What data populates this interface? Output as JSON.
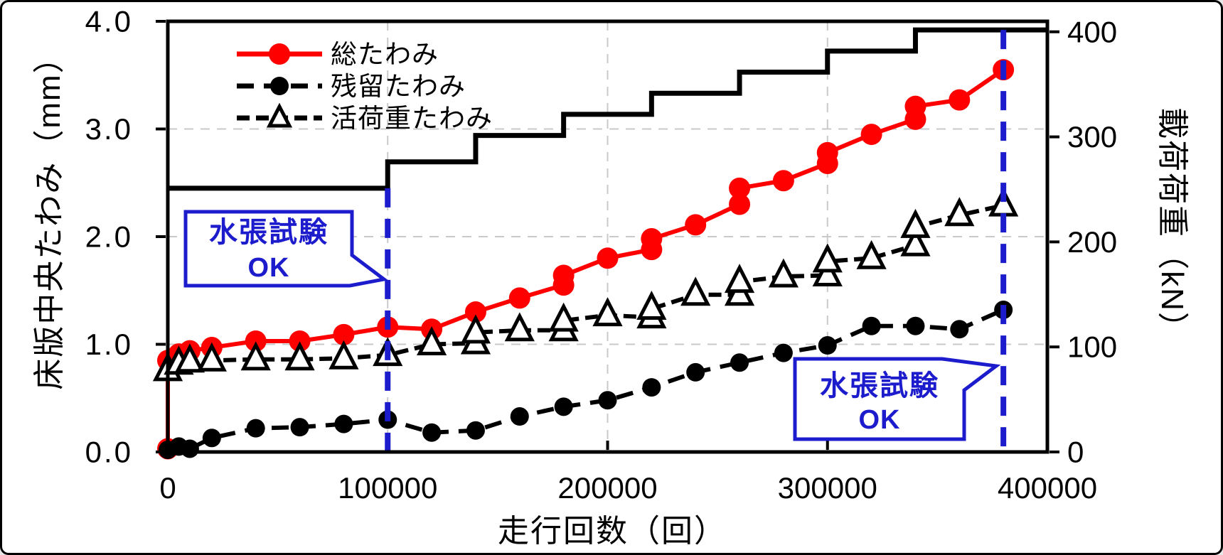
{
  "chart_data": {
    "type": "line",
    "title": "",
    "x_axis": {
      "label": "走行回数（回）",
      "min": 0,
      "max": 400000,
      "tick_values": [
        0,
        100000,
        200000,
        300000,
        400000
      ],
      "tick_labels": [
        "0",
        "100000",
        "200000",
        "300000",
        "400000"
      ],
      "gridline_values": [
        100000,
        200000,
        300000
      ],
      "grid": true
    },
    "y_axis_left": {
      "label": "床版中央たわみ（mm）",
      "min": 0,
      "max": 4.0,
      "tick_values": [
        0,
        1,
        2,
        3,
        4
      ],
      "tick_labels": [
        "0.0",
        "1.0",
        "2.0",
        "3.0",
        "4.0"
      ],
      "gridline_values": [
        1,
        2,
        3
      ],
      "grid": true
    },
    "y_axis_right": {
      "label": "載荷荷重（kN）",
      "tick_values": [
        0,
        100,
        200,
        300,
        400
      ],
      "tick_labels": [
        "0",
        "100",
        "200",
        "300",
        "400"
      ],
      "display_min": 0,
      "display_max": 410
    },
    "legend": {
      "position": "top-left-inside",
      "entries": [
        {
          "label": "総たわみ",
          "series": "total"
        },
        {
          "label": "残留たわみ",
          "series": "residual"
        },
        {
          "label": "活荷重たわみ",
          "series": "live_load"
        }
      ]
    },
    "series": [
      {
        "id": "total",
        "name": "総たわみ",
        "color": "#ff0000",
        "line": "solid",
        "marker": "filled-circle",
        "axis": "left",
        "points": [
          [
            0,
            0.03
          ],
          [
            0,
            0.85
          ],
          [
            5000,
            0.91
          ],
          [
            10000,
            0.94
          ],
          [
            20000,
            0.97
          ],
          [
            40000,
            1.03
          ],
          [
            60000,
            1.03
          ],
          [
            80000,
            1.09
          ],
          [
            100000,
            1.16
          ],
          [
            120000,
            1.14
          ],
          [
            140000,
            1.3
          ],
          [
            160000,
            1.43
          ],
          [
            180000,
            1.55
          ],
          [
            180000,
            1.64
          ],
          [
            200000,
            1.8
          ],
          [
            220000,
            1.88
          ],
          [
            220000,
            1.98
          ],
          [
            240000,
            2.11
          ],
          [
            260000,
            2.3
          ],
          [
            260000,
            2.45
          ],
          [
            280000,
            2.52
          ],
          [
            300000,
            2.68
          ],
          [
            300000,
            2.78
          ],
          [
            320000,
            2.95
          ],
          [
            340000,
            3.09
          ],
          [
            340000,
            3.21
          ],
          [
            360000,
            3.27
          ],
          [
            380000,
            3.55
          ]
        ]
      },
      {
        "id": "residual",
        "name": "残留たわみ",
        "color": "#000000",
        "line": "dashed",
        "marker": "filled-circle",
        "axis": "left",
        "points": [
          [
            0,
            0.02
          ],
          [
            5000,
            0.05
          ],
          [
            10000,
            0.03
          ],
          [
            20000,
            0.13
          ],
          [
            40000,
            0.22
          ],
          [
            60000,
            0.23
          ],
          [
            80000,
            0.26
          ],
          [
            100000,
            0.3
          ],
          [
            120000,
            0.18
          ],
          [
            140000,
            0.2
          ],
          [
            160000,
            0.33
          ],
          [
            180000,
            0.42
          ],
          [
            200000,
            0.48
          ],
          [
            220000,
            0.6
          ],
          [
            240000,
            0.74
          ],
          [
            260000,
            0.83
          ],
          [
            280000,
            0.92
          ],
          [
            300000,
            0.99
          ],
          [
            320000,
            1.17
          ],
          [
            340000,
            1.17
          ],
          [
            360000,
            1.14
          ],
          [
            380000,
            1.32
          ]
        ]
      },
      {
        "id": "live_load",
        "name": "活荷重たわみ",
        "color": "#000000",
        "line": "dashed",
        "marker": "open-triangle",
        "axis": "left",
        "points": [
          [
            0,
            0.76
          ],
          [
            5000,
            0.82
          ],
          [
            10000,
            0.84
          ],
          [
            20000,
            0.85
          ],
          [
            40000,
            0.86
          ],
          [
            60000,
            0.86
          ],
          [
            80000,
            0.87
          ],
          [
            100000,
            0.9
          ],
          [
            120000,
            1.0
          ],
          [
            140000,
            1.01
          ],
          [
            140000,
            1.11
          ],
          [
            160000,
            1.13
          ],
          [
            180000,
            1.13
          ],
          [
            180000,
            1.22
          ],
          [
            200000,
            1.27
          ],
          [
            220000,
            1.25
          ],
          [
            220000,
            1.33
          ],
          [
            240000,
            1.46
          ],
          [
            260000,
            1.46
          ],
          [
            260000,
            1.58
          ],
          [
            280000,
            1.63
          ],
          [
            300000,
            1.64
          ],
          [
            300000,
            1.77
          ],
          [
            320000,
            1.8
          ],
          [
            340000,
            1.92
          ],
          [
            340000,
            2.09
          ],
          [
            360000,
            2.2
          ],
          [
            380000,
            2.29
          ]
        ]
      }
    ],
    "load_step_series": {
      "name": "載荷荷重",
      "unit": "kN",
      "color": "#000000",
      "steps": [
        {
          "from_cycles": 0,
          "load_kN": 245
        },
        {
          "from_cycles": 100000,
          "load_kN": 269.5
        },
        {
          "from_cycles": 140000,
          "load_kN": 294
        },
        {
          "from_cycles": 180000,
          "load_kN": 313.6
        },
        {
          "from_cycles": 220000,
          "load_kN": 333.2
        },
        {
          "from_cycles": 260000,
          "load_kN": 352.8
        },
        {
          "from_cycles": 300000,
          "load_kN": 372.4
        },
        {
          "from_cycles": 340000,
          "load_kN": 392
        }
      ],
      "end_cycles": 400000
    },
    "annotations": [
      {
        "id": "water-test-1",
        "line1": "水張試験",
        "line2": "OK",
        "at_cycles": 100000,
        "line_top_mm": 2.45
      },
      {
        "id": "water-test-2",
        "line1": "水張試験",
        "line2": "OK",
        "at_cycles": 380000,
        "line_top_mm": 3.92
      }
    ],
    "colors": {
      "accent_red": "#ff0000",
      "annotation_blue": "#1c1ccd",
      "gridline_gray": "#c9c9c9",
      "axis_black": "#000000",
      "background": "#ffffff"
    }
  }
}
